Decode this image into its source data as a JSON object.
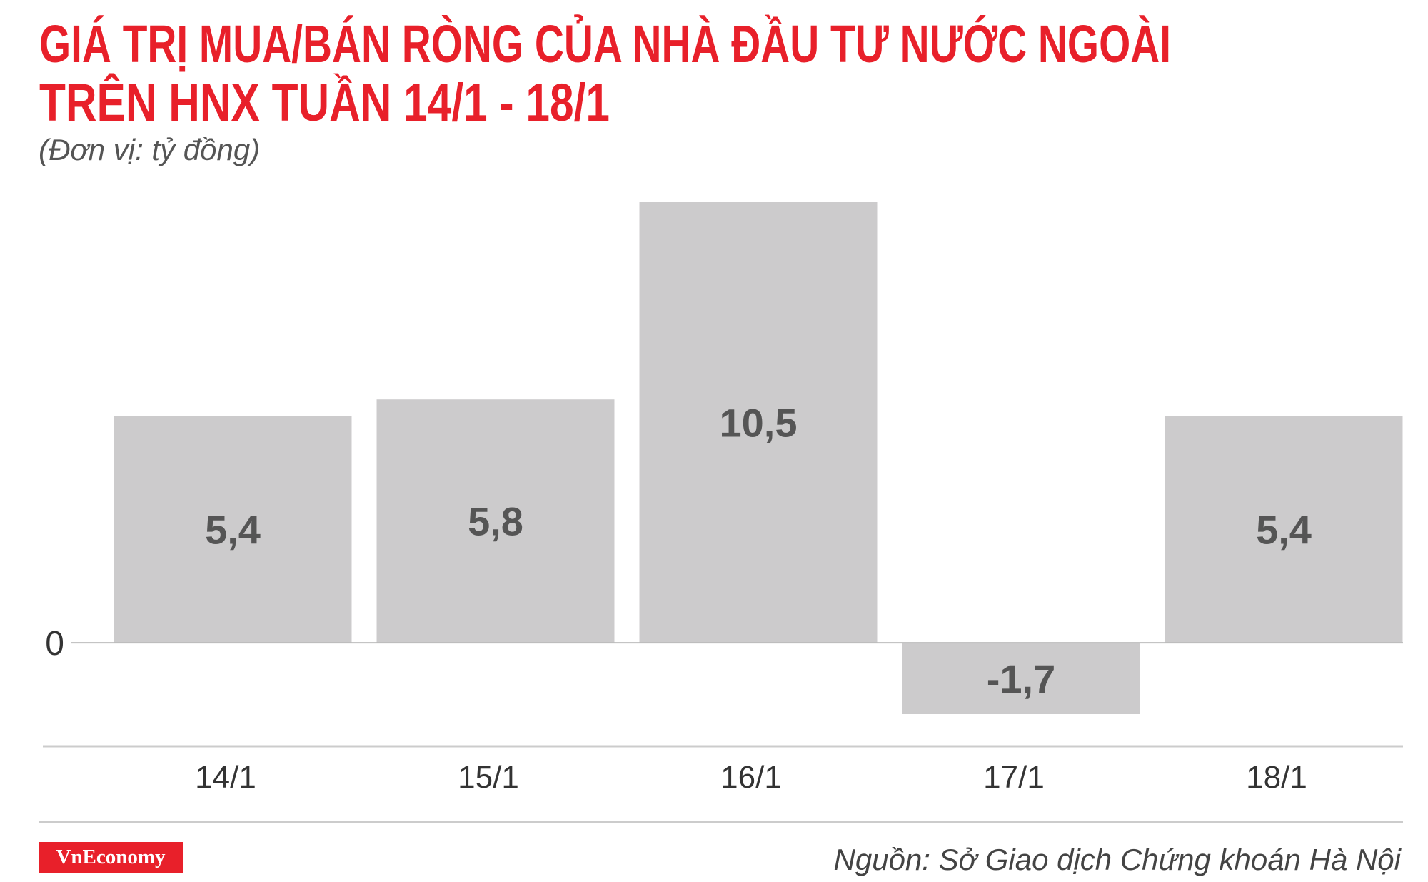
{
  "chart_data": {
    "type": "bar",
    "title": [
      "GIÁ TRỊ MUA/BÁN RÒNG CỦA NHÀ ĐẦU TƯ NƯỚC NGOÀI",
      "TRÊN HNX TUẦN 14/1 - 18/1"
    ],
    "subtitle": "(Đơn vị: tỷ đồng)",
    "categories": [
      "14/1",
      "15/1",
      "16/1",
      "17/1",
      "18/1"
    ],
    "values": [
      5.4,
      5.8,
      10.5,
      -1.7,
      5.4
    ],
    "value_labels": [
      "5,4",
      "5,8",
      "10,5",
      "-1,7",
      "5,4"
    ],
    "color": "#cccbcc",
    "ylim": [
      -1.7,
      10.5
    ],
    "yticks": [
      0
    ],
    "source": "Nguồn: Sở Giao dịch Chứng khoán Hà Nội",
    "logo": "VnEconomy"
  }
}
